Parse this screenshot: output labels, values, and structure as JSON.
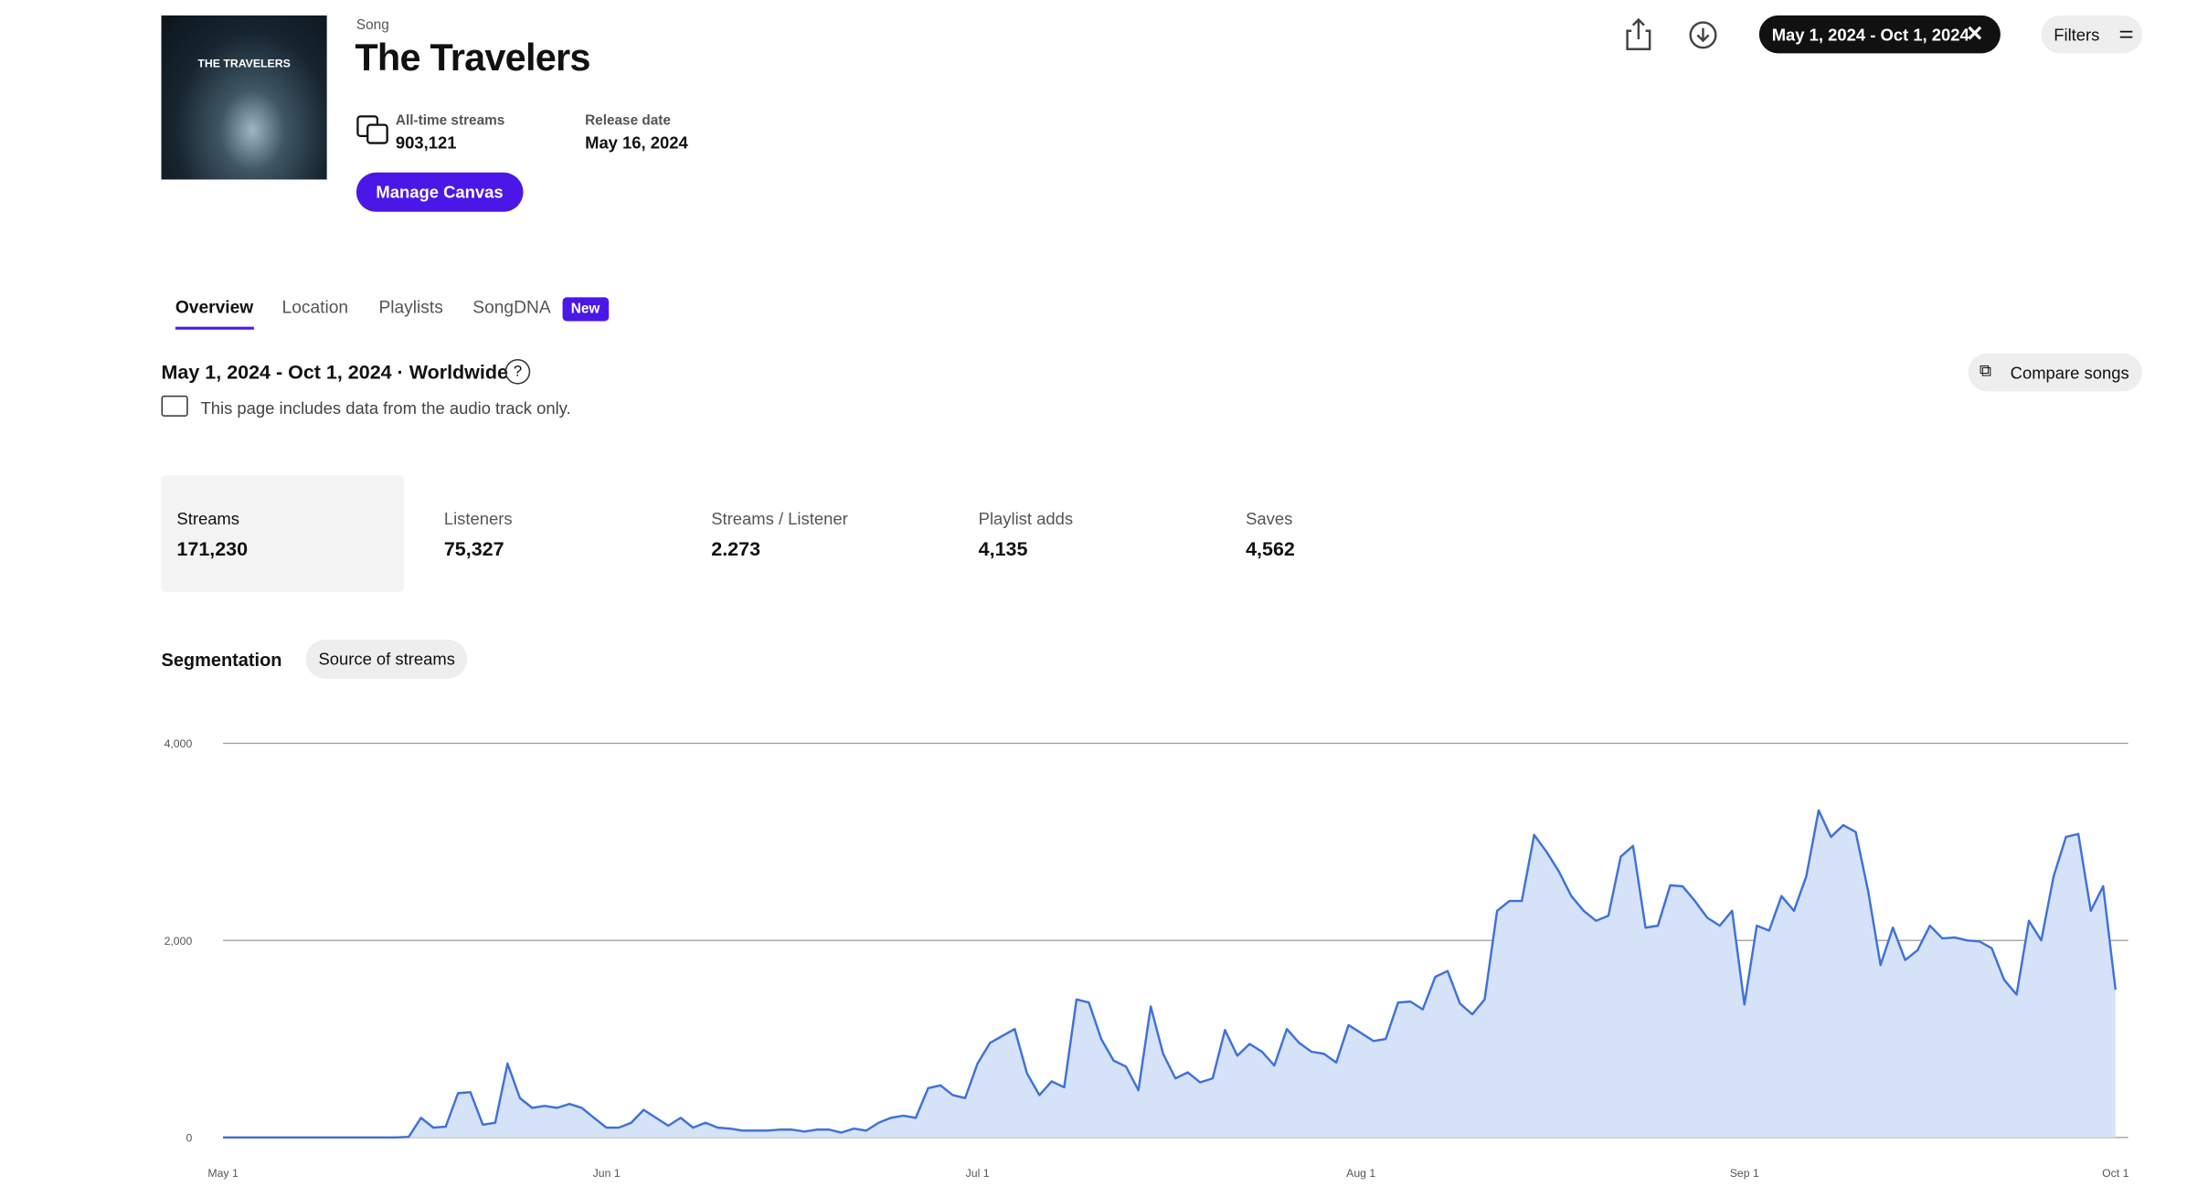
{
  "header": {
    "art_text": "THE TRAVELERS",
    "kind": "Song",
    "title": "The Travelers",
    "streams_label": "All-time streams",
    "streams_value": "903,121",
    "release_label": "Release date",
    "release_value": "May 16, 2024",
    "canvas_button": "Manage Canvas",
    "date_range": "May 1, 2024 - Oct 1, 2024",
    "filters": "Filters"
  },
  "tabs": [
    "Overview",
    "Location",
    "Playlists",
    "SongDNA"
  ],
  "new_badge": "New",
  "summary": {
    "title": "May 1, 2024 - Oct 1, 2024 · Worldwide",
    "note": "This page includes data from the audio track only.",
    "compare": "Compare songs"
  },
  "metrics": [
    {
      "label": "Streams",
      "value": "171,230"
    },
    {
      "label": "Listeners",
      "value": "75,327"
    },
    {
      "label": "Streams / Listener",
      "value": "2.273"
    },
    {
      "label": "Playlist adds",
      "value": "4,135"
    },
    {
      "label": "Saves",
      "value": "4,562"
    }
  ],
  "segmentation": {
    "title": "Segmentation",
    "chip": "Source of streams"
  },
  "chart_data": {
    "type": "area",
    "color": "#3f72d9",
    "fill": "#d6e2f8",
    "grid": true,
    "ylim": [
      0,
      4000
    ],
    "yticks": [
      0,
      {
        "value": 2000,
        "label": "2,000"
      },
      {
        "value": 4000,
        "label": "4,000"
      }
    ],
    "xlim": [
      0,
      153
    ],
    "xticks": [
      {
        "value": 0,
        "label": "May 1"
      },
      {
        "value": 31,
        "label": "Jun 1"
      },
      {
        "value": 61,
        "label": "Jul 1"
      },
      {
        "value": 92,
        "label": "Aug 1"
      },
      {
        "value": 123,
        "label": "Sep 1"
      },
      {
        "value": 153,
        "label": "Oct 1"
      }
    ],
    "values": [
      0,
      0,
      0,
      0,
      0,
      0,
      0,
      0,
      0,
      0,
      0,
      0,
      0,
      0,
      0,
      5,
      200,
      100,
      110,
      450,
      460,
      130,
      150,
      750,
      400,
      300,
      320,
      300,
      340,
      300,
      200,
      100,
      100,
      150,
      280,
      200,
      120,
      200,
      100,
      150,
      100,
      90,
      70,
      70,
      70,
      80,
      80,
      60,
      80,
      80,
      50,
      90,
      70,
      150,
      200,
      220,
      200,
      500,
      530,
      430,
      400,
      750,
      960,
      1030,
      1100,
      650,
      430,
      570,
      510,
      1400,
      1370,
      1000,
      780,
      720,
      480,
      1330,
      850,
      600,
      660,
      560,
      600,
      1090,
      830,
      950,
      870,
      730,
      1100,
      960,
      870,
      850,
      760,
      1140,
      1060,
      980,
      1000,
      1370,
      1380,
      1300,
      1630,
      1690,
      1360,
      1250,
      1400,
      2300,
      2400,
      2400,
      3070,
      2900,
      2700,
      2450,
      2300,
      2200,
      2250,
      2850,
      2960,
      2130,
      2150,
      2560,
      2550,
      2400,
      2230,
      2150,
      2300,
      1350,
      2150,
      2100,
      2450,
      2300,
      2650,
      3320,
      3050,
      3170,
      3100,
      2500,
      1750,
      2130,
      1800,
      1900,
      2150,
      2020,
      2030,
      2000,
      1990,
      1920,
      1600,
      1450,
      2200,
      2000,
      2650,
      3050,
      3080,
      2300,
      2550,
      1500
    ]
  }
}
